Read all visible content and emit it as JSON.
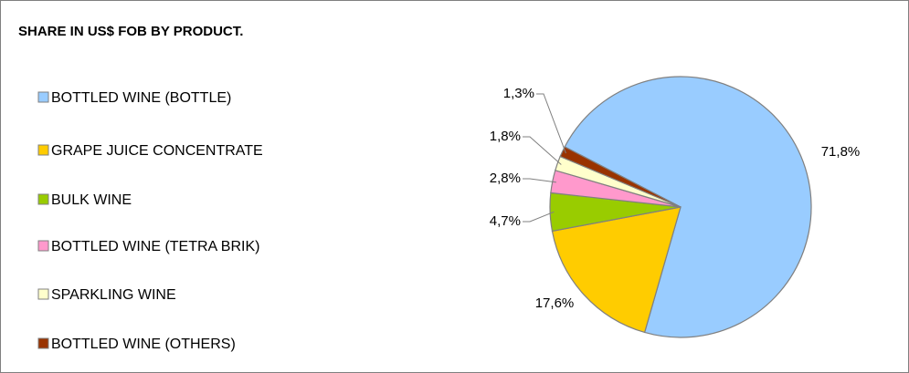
{
  "chart_data": {
    "type": "pie",
    "title": "SHARE IN US$ FOB BY PRODUCT.",
    "categories": [
      "BOTTLED WINE (BOTTLE)",
      "GRAPE JUICE CONCENTRATE",
      "BULK WINE",
      "BOTTLED WINE (TETRA BRIK)",
      "SPARKLING WINE",
      "BOTTLED WINE (OTHERS)"
    ],
    "values": [
      71.8,
      17.6,
      4.7,
      2.8,
      1.8,
      1.3
    ],
    "value_labels": [
      "71,8%",
      "17,6%",
      "4,7%",
      "2,8%",
      "1,8%",
      "1,3%"
    ],
    "colors": [
      "#99ccff",
      "#ffcc00",
      "#99cc00",
      "#ff99cc",
      "#ffffcc",
      "#993300"
    ],
    "legend": "left"
  }
}
